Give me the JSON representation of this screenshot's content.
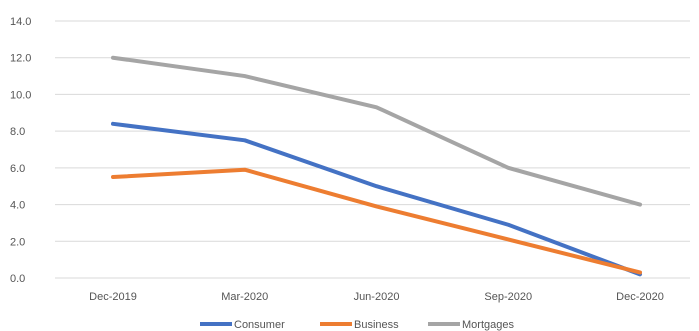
{
  "chart_data": {
    "type": "line",
    "title": "",
    "xlabel": "",
    "ylabel": "",
    "categories": [
      "Dec-2019",
      "Mar-2020",
      "Jun-2020",
      "Sep-2020",
      "Dec-2020"
    ],
    "ylim": [
      0,
      14
    ],
    "yticks": [
      "0.0",
      "2.0",
      "4.0",
      "6.0",
      "8.0",
      "10.0",
      "12.0",
      "14.0"
    ],
    "grid": "horizontal",
    "legend_position": "bottom",
    "series": [
      {
        "name": "Consumer",
        "color": "#4472c4",
        "values": [
          8.4,
          7.5,
          5.0,
          2.9,
          0.2
        ]
      },
      {
        "name": "Business",
        "color": "#ed7d31",
        "values": [
          5.5,
          5.9,
          3.9,
          2.1,
          0.3
        ]
      },
      {
        "name": "Mortgages",
        "color": "#a5a5a5",
        "values": [
          12.0,
          11.0,
          9.3,
          6.0,
          4.0
        ]
      }
    ]
  }
}
